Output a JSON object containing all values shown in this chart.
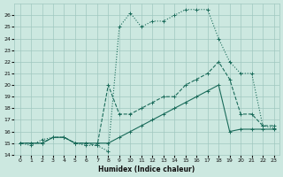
{
  "xlabel": "Humidex (Indice chaleur)",
  "ylabel": "",
  "xlim": [
    -0.5,
    23.5
  ],
  "ylim": [
    14,
    27
  ],
  "xticks": [
    0,
    1,
    2,
    3,
    4,
    5,
    6,
    7,
    8,
    9,
    10,
    11,
    12,
    13,
    14,
    15,
    16,
    17,
    18,
    19,
    20,
    21,
    22,
    23
  ],
  "yticks": [
    14,
    15,
    16,
    17,
    18,
    19,
    20,
    21,
    22,
    23,
    24,
    25,
    26
  ],
  "bg_color": "#cce8e0",
  "line_color": "#1a6b5a",
  "grid_color": "#a0c8c0",
  "lines": [
    {
      "x": [
        0,
        1,
        2,
        3,
        4,
        5,
        6,
        7,
        8,
        9,
        10,
        11,
        12,
        13,
        14,
        15,
        16,
        17,
        18,
        19,
        20,
        21,
        22,
        23
      ],
      "y": [
        15,
        15,
        15,
        15.5,
        15.5,
        15,
        15,
        15,
        15,
        15.5,
        16,
        16.5,
        17,
        17.5,
        18,
        18.5,
        19,
        19.5,
        20,
        16,
        16.2,
        16.2,
        16.2,
        16.2
      ],
      "style": "-",
      "marker": "+"
    },
    {
      "x": [
        0,
        1,
        2,
        3,
        4,
        5,
        6,
        7,
        8,
        9,
        10,
        11,
        12,
        13,
        14,
        15,
        16,
        17,
        18,
        19,
        20,
        21,
        22,
        23
      ],
      "y": [
        15,
        15,
        15,
        15.5,
        15.5,
        15,
        15,
        14.8,
        20,
        17.5,
        17.5,
        18,
        18.5,
        19,
        19,
        20,
        20.5,
        21,
        22,
        20.5,
        17.5,
        17.5,
        16.5,
        16.5
      ],
      "style": "--",
      "marker": "+"
    },
    {
      "x": [
        0,
        1,
        2,
        3,
        4,
        5,
        6,
        7,
        8,
        9,
        10,
        11,
        12,
        13,
        14,
        15,
        16,
        17,
        18,
        19,
        20,
        21,
        22,
        23
      ],
      "y": [
        15,
        14.8,
        15.3,
        15.5,
        15.5,
        15,
        14.8,
        14.8,
        14.3,
        25,
        26.2,
        25,
        25.5,
        25.5,
        26,
        26.5,
        26.5,
        26.5,
        24,
        22,
        21,
        21,
        16.5,
        16.3
      ],
      "style": ":",
      "marker": "+"
    }
  ]
}
